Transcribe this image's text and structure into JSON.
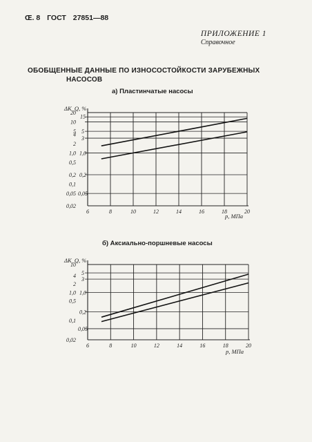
{
  "header": {
    "page": "Œ. 8",
    "standard": "ГОСТ",
    "number": "27851—88"
  },
  "appendix": {
    "title": "ПРИЛОЖЕНИЕ 1",
    "subtitle": "Справочное"
  },
  "main_title": {
    "line1": "ОБОБЩЕННЫЕ ДАННЫЕ ПО ИЗНОСОСТОЙКОСТИ ЗАРУБЕЖНЫХ",
    "line2": "НАСОСОВ"
  },
  "chart_data": [
    {
      "type": "line",
      "title": "а) Пластинчатые насосы",
      "xlabel": "p, МПа",
      "ylabel": "ΔK_Q, %",
      "y_scale": "log",
      "x_ticks": [
        "6",
        "8",
        "10",
        "12",
        "14",
        "16",
        "18",
        "20"
      ],
      "xlim": [
        6,
        20
      ],
      "y_ticks_outer": [
        "20",
        "10",
        "5",
        "4",
        "2",
        "1,0",
        "0,5",
        "0,2",
        "0,1",
        "0,05",
        "0,02"
      ],
      "y_ticks_inner": [
        "15",
        "5",
        "3",
        "1,0",
        "0,2",
        "0,05"
      ],
      "grid": true,
      "series": [
        {
          "x": [
            7.2,
            20
          ],
          "y": [
            1.7,
            13
          ]
        },
        {
          "x": [
            7.2,
            20
          ],
          "y": [
            0.65,
            4.8
          ]
        }
      ]
    },
    {
      "type": "line",
      "title": "б) Аксиально-поршневые насосы",
      "xlabel": "p, МПа",
      "ylabel": "ΔK_Q, %",
      "y_scale": "log",
      "x_ticks": [
        "6",
        "8",
        "10",
        "12",
        "14",
        "16",
        "18",
        "20"
      ],
      "xlim": [
        6,
        20
      ],
      "y_ticks_outer": [
        "10",
        "4",
        "2",
        "1,0",
        "0,5",
        "0,1",
        "0,02"
      ],
      "y_ticks_inner": [
        "5",
        "3",
        "1,0",
        "0,2",
        "0,05"
      ],
      "grid": true,
      "series": [
        {
          "x": [
            7.2,
            20
          ],
          "y": [
            0.13,
            4.5
          ]
        },
        {
          "x": [
            7.2,
            20
          ],
          "y": [
            0.09,
            2.2
          ]
        }
      ]
    }
  ]
}
